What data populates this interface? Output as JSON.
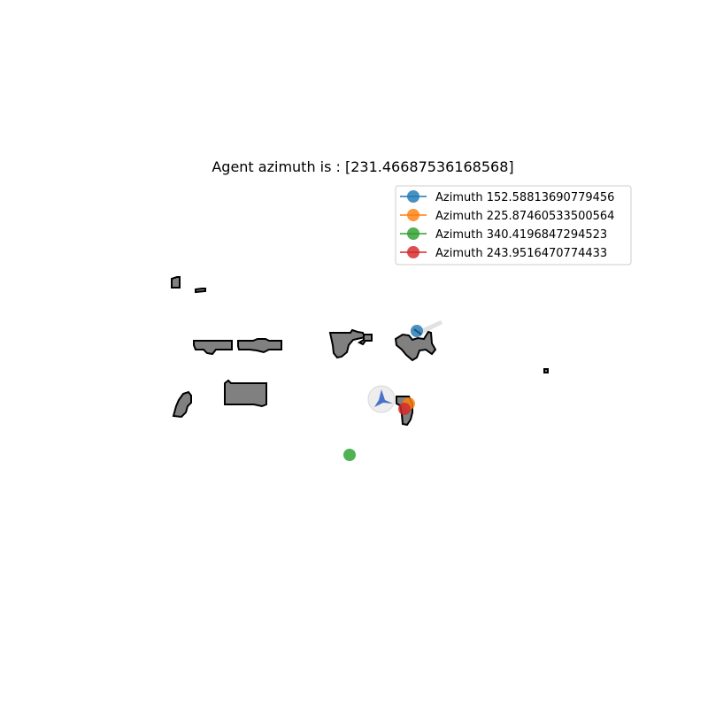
{
  "title": "Agent azimuth is : [231.46687536168568]",
  "agent": {
    "azimuth": 231.46687536168568,
    "arrow_color": "#4a72c8",
    "halo_color": "#e6e6e6"
  },
  "obstacle_style": {
    "fill": "#808080",
    "stroke": "#000000"
  },
  "legend": {
    "location": "upper right",
    "items": [
      {
        "label": "Azimuth 152.58813690779456",
        "color": "#1f77b4"
      },
      {
        "label": "Azimuth 225.87460533500564",
        "color": "#ff7f0e"
      },
      {
        "label": "Azimuth 340.4196847294523",
        "color": "#2ca02c"
      },
      {
        "label": "Azimuth 243.9516470774433",
        "color": "#d62728"
      }
    ]
  }
}
